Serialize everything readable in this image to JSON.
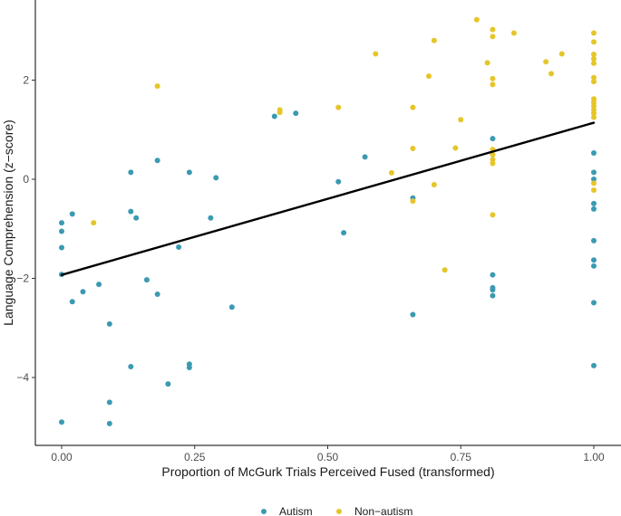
{
  "chart_data": {
    "type": "scatter",
    "xlabel": "Proportion of McGurk Trials Perceived Fused (transformed)",
    "ylabel": "Language Comprehension (z−score)",
    "xlim": [
      -0.05,
      1.05
    ],
    "ylim": [
      -5.4,
      3.6
    ],
    "x_ticks": [
      0.0,
      0.25,
      0.5,
      0.75,
      1.0
    ],
    "x_tick_labels": [
      "0.00",
      "0.25",
      "0.50",
      "0.75",
      "1.00"
    ],
    "y_ticks": [
      -4,
      -2,
      0,
      2
    ],
    "y_tick_labels": [
      "−4",
      "−2",
      "0",
      "2"
    ],
    "grid": false,
    "legend_position": "bottom",
    "series": [
      {
        "name": "Autism",
        "color": "#3b9ab2",
        "points": [
          [
            0.0,
            -0.88
          ],
          [
            0.0,
            -1.05
          ],
          [
            0.0,
            -1.38
          ],
          [
            0.0,
            -1.92
          ],
          [
            0.0,
            -4.9
          ],
          [
            0.02,
            -0.7
          ],
          [
            0.02,
            -2.47
          ],
          [
            0.04,
            -2.27
          ],
          [
            0.07,
            -2.12
          ],
          [
            0.09,
            -2.92
          ],
          [
            0.09,
            -4.5
          ],
          [
            0.09,
            -4.93
          ],
          [
            0.13,
            0.14
          ],
          [
            0.13,
            -0.65
          ],
          [
            0.13,
            -3.78
          ],
          [
            0.14,
            -0.78
          ],
          [
            0.16,
            -2.03
          ],
          [
            0.18,
            0.38
          ],
          [
            0.18,
            -2.32
          ],
          [
            0.2,
            -4.13
          ],
          [
            0.22,
            -1.37
          ],
          [
            0.24,
            0.14
          ],
          [
            0.24,
            -3.73
          ],
          [
            0.24,
            -3.8
          ],
          [
            0.28,
            -0.78
          ],
          [
            0.29,
            0.03
          ],
          [
            0.32,
            -2.58
          ],
          [
            0.4,
            1.27
          ],
          [
            0.44,
            1.33
          ],
          [
            0.52,
            -0.05
          ],
          [
            0.53,
            -1.08
          ],
          [
            0.57,
            0.45
          ],
          [
            0.66,
            -0.38
          ],
          [
            0.66,
            -2.73
          ],
          [
            0.81,
            0.82
          ],
          [
            0.81,
            -1.93
          ],
          [
            0.81,
            -2.19
          ],
          [
            0.81,
            -2.23
          ],
          [
            0.81,
            -2.35
          ],
          [
            1.0,
            0.53
          ],
          [
            1.0,
            0.14
          ],
          [
            1.0,
            0.0
          ],
          [
            1.0,
            -0.49
          ],
          [
            1.0,
            -0.6
          ],
          [
            1.0,
            -1.24
          ],
          [
            1.0,
            -1.63
          ],
          [
            1.0,
            -1.75
          ],
          [
            1.0,
            -2.49
          ],
          [
            1.0,
            -3.76
          ]
        ]
      },
      {
        "name": "Non−autism",
        "color": "#e6c52a",
        "points": [
          [
            0.06,
            -0.88
          ],
          [
            0.18,
            1.88
          ],
          [
            0.41,
            1.35
          ],
          [
            0.41,
            1.4
          ],
          [
            0.52,
            1.45
          ],
          [
            0.59,
            2.53
          ],
          [
            0.62,
            0.13
          ],
          [
            0.66,
            1.45
          ],
          [
            0.66,
            0.62
          ],
          [
            0.66,
            -0.44
          ],
          [
            0.69,
            2.08
          ],
          [
            0.7,
            2.8
          ],
          [
            0.7,
            -0.11
          ],
          [
            0.72,
            -1.83
          ],
          [
            0.74,
            0.63
          ],
          [
            0.75,
            1.2
          ],
          [
            0.78,
            3.22
          ],
          [
            0.8,
            2.35
          ],
          [
            0.81,
            1.91
          ],
          [
            0.81,
            3.02
          ],
          [
            0.81,
            2.88
          ],
          [
            0.81,
            2.03
          ],
          [
            0.81,
            0.6
          ],
          [
            0.81,
            0.5
          ],
          [
            0.81,
            0.4
          ],
          [
            0.81,
            0.32
          ],
          [
            0.81,
            -0.72
          ],
          [
            0.85,
            2.95
          ],
          [
            0.91,
            2.37
          ],
          [
            0.92,
            2.13
          ],
          [
            0.94,
            2.53
          ],
          [
            1.0,
            2.95
          ],
          [
            1.0,
            2.77
          ],
          [
            1.0,
            2.52
          ],
          [
            1.0,
            2.43
          ],
          [
            1.0,
            2.34
          ],
          [
            1.0,
            2.05
          ],
          [
            1.0,
            1.97
          ],
          [
            1.0,
            1.62
          ],
          [
            1.0,
            1.55
          ],
          [
            1.0,
            1.48
          ],
          [
            1.0,
            1.4
          ],
          [
            1.0,
            1.33
          ],
          [
            1.0,
            1.25
          ],
          [
            1.0,
            -0.08
          ],
          [
            1.0,
            -0.22
          ]
        ]
      }
    ],
    "fit_line": {
      "color": "#000000",
      "points": [
        [
          0.0,
          -1.93
        ],
        [
          1.0,
          1.14
        ]
      ]
    }
  }
}
